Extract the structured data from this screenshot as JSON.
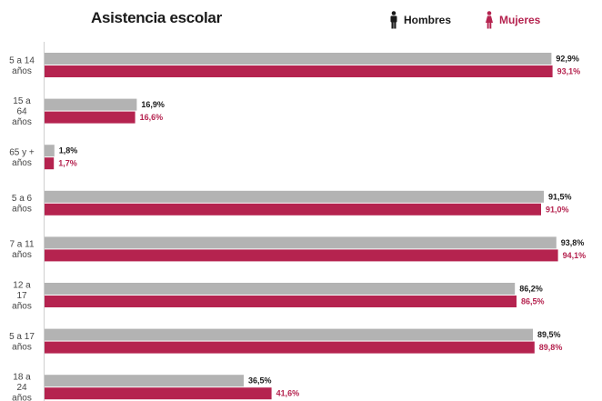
{
  "header": {
    "title": "Asistencia escolar",
    "legend_men": "Hombres",
    "legend_women": "Mujeres",
    "men_icon": "male-person-icon",
    "women_icon": "female-person-icon"
  },
  "colors": {
    "men": "#b3b3b3",
    "women": "#b5234f",
    "men_text": "#1a1a1a",
    "women_text": "#b5234f",
    "axis": "#cfcfcf"
  },
  "chart_data": {
    "type": "bar",
    "orientation": "horizontal",
    "title": "Asistencia escolar",
    "xlim": [
      0,
      100
    ],
    "grid": false,
    "legend_placement": "top-right",
    "categories": [
      [
        "5 a 14",
        "años"
      ],
      [
        "15 a",
        "64",
        "años"
      ],
      [
        "65 y +",
        "años"
      ],
      [
        "5 a 6",
        "años"
      ],
      [
        "7 a 11",
        "años"
      ],
      [
        "12 a",
        "17",
        "años"
      ],
      [
        "5 a 17",
        "años"
      ],
      [
        "18 a",
        "24",
        "años"
      ]
    ],
    "series": [
      {
        "name": "Hombres",
        "values": [
          92.9,
          16.9,
          1.8,
          91.5,
          93.8,
          86.2,
          89.5,
          36.5
        ],
        "labels": [
          "92,9%",
          "16,9%",
          "1,8%",
          "91,5%",
          "93,8%",
          "86,2%",
          "89,5%",
          "36,5%"
        ]
      },
      {
        "name": "Mujeres",
        "values": [
          93.1,
          16.6,
          1.7,
          91.0,
          94.1,
          86.5,
          89.8,
          41.6
        ],
        "labels": [
          "93,1%",
          "16,6%",
          "1,7%",
          "91,0%",
          "94,1%",
          "86,5%",
          "89,8%",
          "41,6%"
        ]
      }
    ]
  }
}
